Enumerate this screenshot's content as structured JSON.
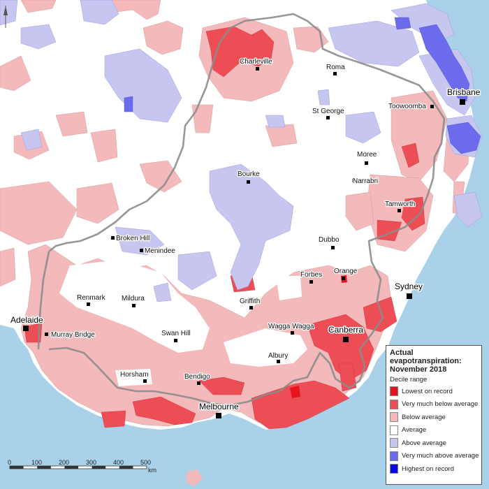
{
  "map": {
    "colors": {
      "ocean": "#a9d1ea",
      "land": "#ffffff",
      "below_average": "#f4b9bb",
      "very_much_below": "#ed4e55",
      "above_average": "#c6c6f1",
      "very_much_above": "#6b6bec",
      "border": "#8c8c8c"
    },
    "towns": [
      {
        "name": "Charleville"
      },
      {
        "name": "Roma"
      },
      {
        "name": "St George"
      },
      {
        "name": "Toowoomba"
      },
      {
        "name": "Moree"
      },
      {
        "name": "Narrabri"
      },
      {
        "name": "Bourke"
      },
      {
        "name": "Tamworth"
      },
      {
        "name": "Broken Hill"
      },
      {
        "name": "Menindee"
      },
      {
        "name": "Dubbo"
      },
      {
        "name": "Forbes"
      },
      {
        "name": "Orange"
      },
      {
        "name": "Renmark"
      },
      {
        "name": "Mildura"
      },
      {
        "name": "Griffith"
      },
      {
        "name": "Wagga Wagga"
      },
      {
        "name": "Swan Hill"
      },
      {
        "name": "Murray Bridge"
      },
      {
        "name": "Albury"
      },
      {
        "name": "Horsham"
      },
      {
        "name": "Bendigo"
      }
    ],
    "cities": [
      {
        "name": "Brisbane"
      },
      {
        "name": "Sydney"
      },
      {
        "name": "Canberra"
      },
      {
        "name": "Adelaide"
      },
      {
        "name": "Melbourne"
      }
    ]
  },
  "scale_bar": {
    "ticks": [
      "0",
      "100",
      "200",
      "300",
      "400",
      "500"
    ],
    "unit": "km"
  },
  "legend": {
    "title_line1": "Actual",
    "title_line2": "evapotranspiration:",
    "title_line3": "November 2018",
    "subtitle": "Decile range",
    "items": [
      {
        "label": "Lowest on record",
        "color": "#e8141d"
      },
      {
        "label": "Very much below average",
        "color": "#ed4e55"
      },
      {
        "label": "Below average",
        "color": "#f4b9bb"
      },
      {
        "label": "Average",
        "color": "#ffffff"
      },
      {
        "label": "Above average",
        "color": "#c6c6f1"
      },
      {
        "label": "Very much above average",
        "color": "#6b6bec"
      },
      {
        "label": "Highest on record",
        "color": "#0a0ae0"
      }
    ]
  }
}
